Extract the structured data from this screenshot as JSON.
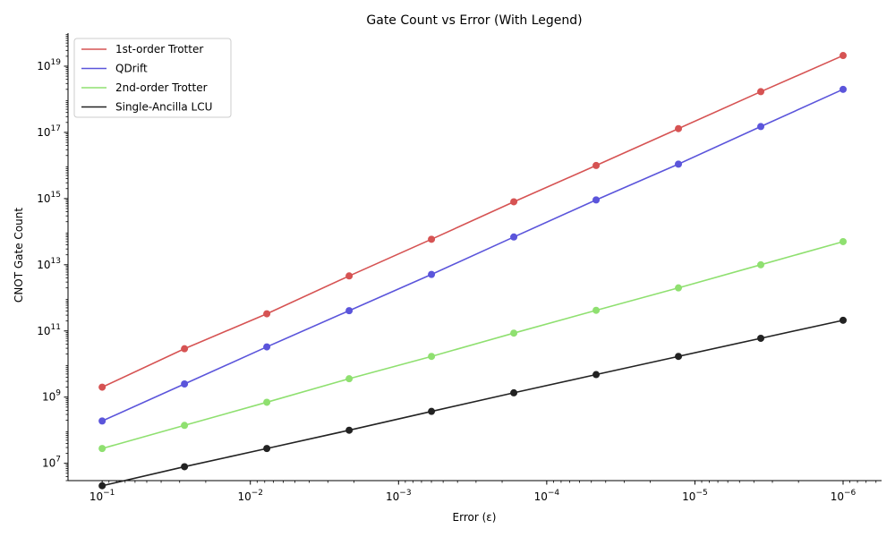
{
  "chart_data": {
    "type": "line",
    "title": "Gate Count vs Error (With Legend)",
    "xlabel": "Error (ε)",
    "ylabel": "CNOT Gate Count",
    "xscale": "log",
    "yscale": "log",
    "x_inverted": true,
    "xlim": [
      0.17,
      5.5e-07
    ],
    "ylim": [
      3000000.0,
      1e+20
    ],
    "grid": false,
    "legend_position": "top-left",
    "x": [
      0.1,
      0.02783,
      0.007743,
      0.002154,
      0.0005995,
      0.0001668,
      4.642e-05,
      1.292e-05,
      3.594e-06,
      1e-06
    ],
    "x_tick_labels": [
      {
        "value": 0.1,
        "base": "10",
        "exp": "−1"
      },
      {
        "value": 0.01,
        "base": "10",
        "exp": "−2"
      },
      {
        "value": 0.001,
        "base": "10",
        "exp": "−3"
      },
      {
        "value": 0.0001,
        "base": "10",
        "exp": "−4"
      },
      {
        "value": 1e-05,
        "base": "10",
        "exp": "−5"
      },
      {
        "value": 1e-06,
        "base": "10",
        "exp": "−6"
      }
    ],
    "y_tick_labels": [
      {
        "value": 10000000.0,
        "base": "10",
        "exp": "7"
      },
      {
        "value": 1000000000.0,
        "base": "10",
        "exp": "9"
      },
      {
        "value": 100000000000.0,
        "base": "10",
        "exp": "11"
      },
      {
        "value": 10000000000000.0,
        "base": "10",
        "exp": "13"
      },
      {
        "value": 1000000000000000.0,
        "base": "10",
        "exp": "15"
      },
      {
        "value": 1e+17,
        "base": "10",
        "exp": "17"
      },
      {
        "value": 1e+19,
        "base": "10",
        "exp": "19"
      }
    ],
    "series": [
      {
        "name": "1st-order Trotter",
        "color": "#d65353",
        "values": [
          2000000000.0,
          29000000000.0,
          330000000000.0,
          4600000000000.0,
          59000000000000.0,
          800000000000000.0,
          1e+16,
          1.3e+17,
          1.7e+18,
          2.1e+19
        ]
      },
      {
        "name": "QDrift",
        "color": "#5b55db",
        "values": [
          190000000.0,
          2500000000.0,
          33000000000.0,
          410000000000.0,
          5100000000000.0,
          69000000000000.0,
          910000000000000.0,
          1.1e+16,
          1.5e+17,
          2e+18
        ]
      },
      {
        "name": "2nd-order Trotter",
        "color": "#8fe070",
        "values": [
          28000000.0,
          140000000.0,
          700000000.0,
          3600000000.0,
          17000000000.0,
          86000000000.0,
          420000000000.0,
          2000000000000.0,
          10000000000000.0,
          50000000000000.0
        ]
      },
      {
        "name": "Single-Ancilla LCU",
        "color": "#222222",
        "values": [
          2100000.0,
          7900000.0,
          28000000.0,
          100000000.0,
          370000000.0,
          1350000000.0,
          4800000000.0,
          17000000000.0,
          60000000000.0,
          210000000000.0
        ]
      }
    ]
  }
}
